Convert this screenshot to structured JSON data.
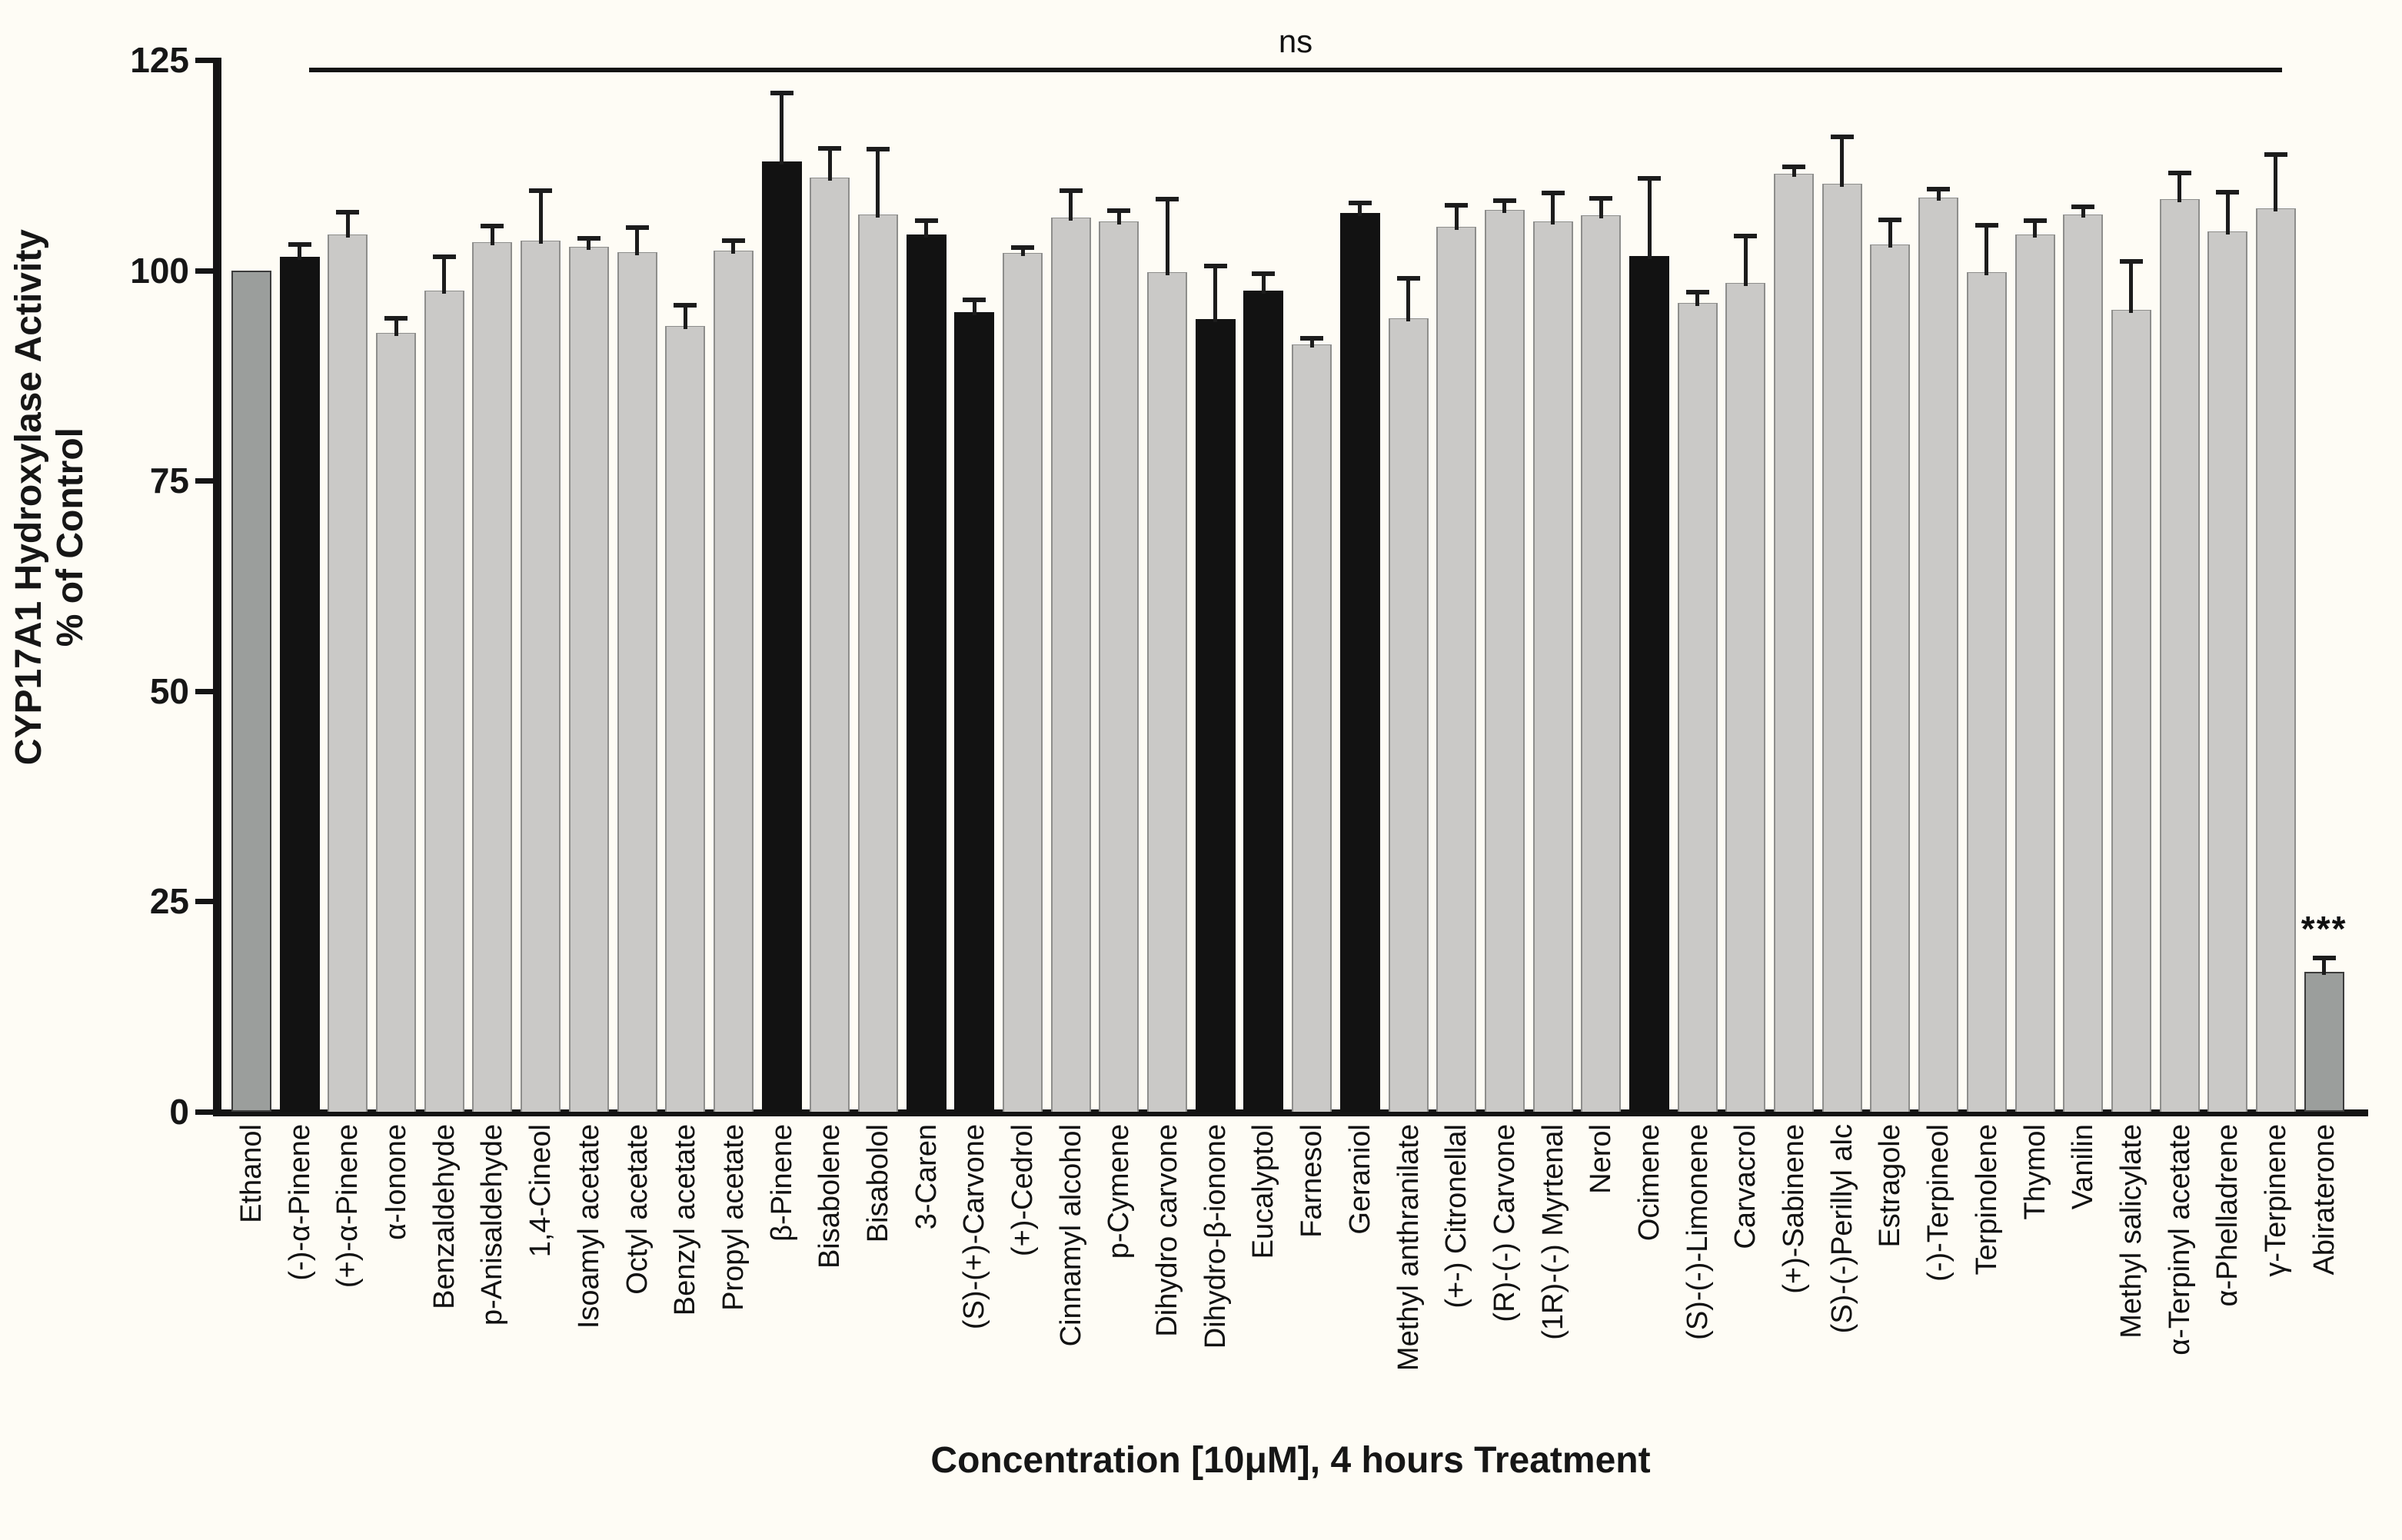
{
  "chart_data": {
    "type": "bar",
    "title": "",
    "xlabel": "Concentration [10μM], 4 hours Treatment",
    "ylabel_line1": "CYP17A1 Hydroxylase Activity",
    "ylabel_line2": "% of Control",
    "ylim": [
      0,
      125
    ],
    "yticks": [
      0,
      25,
      50,
      75,
      100,
      125
    ],
    "grid": false,
    "legend": "none",
    "colors": {
      "control": "#9b9e9c",
      "highlight": "#121212",
      "default": "#cac9c7",
      "error_bar": "#1c1c1c",
      "axis": "#141414",
      "background": "#fefcf5"
    },
    "annotations": {
      "ns_bracket": {
        "label": "ns",
        "from_category": "(-)-α-Pinene",
        "to_category": "γ-Terpinene"
      },
      "significance": {
        "label": "***",
        "category": "Abiraterone"
      }
    },
    "bars": [
      {
        "label": "Ethanol",
        "value": 100.0,
        "sem": 0,
        "type": "control"
      },
      {
        "label": "(-)-α-Pinene",
        "value": 101.6,
        "sem": 1.4,
        "type": "highlight"
      },
      {
        "label": "(+)-α-Pinene",
        "value": 104.3,
        "sem": 2.5,
        "type": "default"
      },
      {
        "label": "α-Ionone",
        "value": 92.6,
        "sem": 1.6,
        "type": "default"
      },
      {
        "label": "Benzaldehyde",
        "value": 97.6,
        "sem": 3.9,
        "type": "default"
      },
      {
        "label": "p-Anisaldehyde",
        "value": 103.3,
        "sem": 1.9,
        "type": "default"
      },
      {
        "label": "1,4-Cineol",
        "value": 103.5,
        "sem": 5.9,
        "type": "default"
      },
      {
        "label": "Isoamyl acetate",
        "value": 102.8,
        "sem": 0.9,
        "type": "default"
      },
      {
        "label": "Octyl acetate",
        "value": 102.2,
        "sem": 2.8,
        "type": "default"
      },
      {
        "label": "Benzyl acetate",
        "value": 93.4,
        "sem": 2.4,
        "type": "default"
      },
      {
        "label": "Propyl acetate",
        "value": 102.3,
        "sem": 1.1,
        "type": "default"
      },
      {
        "label": "β-Pinene",
        "value": 112.9,
        "sem": 8.1,
        "type": "highlight"
      },
      {
        "label": "Bisabolene",
        "value": 111.0,
        "sem": 3.4,
        "type": "default"
      },
      {
        "label": "Bisabolol",
        "value": 106.6,
        "sem": 7.7,
        "type": "default"
      },
      {
        "label": "3-Caren",
        "value": 104.3,
        "sem": 1.5,
        "type": "highlight"
      },
      {
        "label": "(S)-(+)-Carvone",
        "value": 95.0,
        "sem": 1.4,
        "type": "highlight"
      },
      {
        "label": "(+)-Cedrol",
        "value": 102.1,
        "sem": 0.5,
        "type": "default"
      },
      {
        "label": "Cinnamyl alcohol",
        "value": 106.3,
        "sem": 3.1,
        "type": "default"
      },
      {
        "label": "p-Cymene",
        "value": 105.8,
        "sem": 1.2,
        "type": "default"
      },
      {
        "label": "Dihydro carvone",
        "value": 99.8,
        "sem": 8.6,
        "type": "default"
      },
      {
        "label": "Dihydro-β-ionone",
        "value": 94.2,
        "sem": 6.2,
        "type": "highlight"
      },
      {
        "label": "Eucalyptol",
        "value": 97.6,
        "sem": 1.9,
        "type": "highlight"
      },
      {
        "label": "Farnesol",
        "value": 91.2,
        "sem": 0.6,
        "type": "default"
      },
      {
        "label": "Geraniol",
        "value": 106.8,
        "sem": 1.1,
        "type": "highlight"
      },
      {
        "label": "Methyl anthranilate",
        "value": 94.3,
        "sem": 4.7,
        "type": "default"
      },
      {
        "label": "(+-) Citronellal",
        "value": 105.2,
        "sem": 2.4,
        "type": "default"
      },
      {
        "label": "(R)-(-) Carvone",
        "value": 107.2,
        "sem": 1.0,
        "type": "default"
      },
      {
        "label": "(1R)-(-) Myrtenal",
        "value": 105.8,
        "sem": 3.3,
        "type": "default"
      },
      {
        "label": "Nerol",
        "value": 106.5,
        "sem": 2.0,
        "type": "default"
      },
      {
        "label": "Ocimene",
        "value": 101.7,
        "sem": 9.1,
        "type": "highlight"
      },
      {
        "label": "(S)-(-)-Limonene",
        "value": 96.1,
        "sem": 1.2,
        "type": "default"
      },
      {
        "label": "Carvacrol",
        "value": 98.5,
        "sem": 5.5,
        "type": "default"
      },
      {
        "label": "(+)-Sabinene",
        "value": 111.5,
        "sem": 0.7,
        "type": "default"
      },
      {
        "label": "(S)-(-)Perillyl alc",
        "value": 110.3,
        "sem": 5.5,
        "type": "default"
      },
      {
        "label": "Estragole",
        "value": 103.1,
        "sem": 2.8,
        "type": "default"
      },
      {
        "label": "(-)-Terpineol",
        "value": 108.6,
        "sem": 1.0,
        "type": "default"
      },
      {
        "label": "Terpinolene",
        "value": 99.8,
        "sem": 5.5,
        "type": "default"
      },
      {
        "label": "Thymol",
        "value": 104.3,
        "sem": 1.5,
        "type": "default"
      },
      {
        "label": "Vanilin",
        "value": 106.6,
        "sem": 0.9,
        "type": "default"
      },
      {
        "label": "Methyl salicylate",
        "value": 95.3,
        "sem": 5.7,
        "type": "default"
      },
      {
        "label": "α-Terpinyl acetate",
        "value": 108.5,
        "sem": 3.0,
        "type": "default"
      },
      {
        "label": "α-Phelladrene",
        "value": 104.6,
        "sem": 4.6,
        "type": "default"
      },
      {
        "label": "γ-Terpinene",
        "value": 107.4,
        "sem": 6.3,
        "type": "default"
      },
      {
        "label": "Abiraterone",
        "value": 16.6,
        "sem": 1.6,
        "type": "control",
        "sig": "***"
      }
    ]
  }
}
